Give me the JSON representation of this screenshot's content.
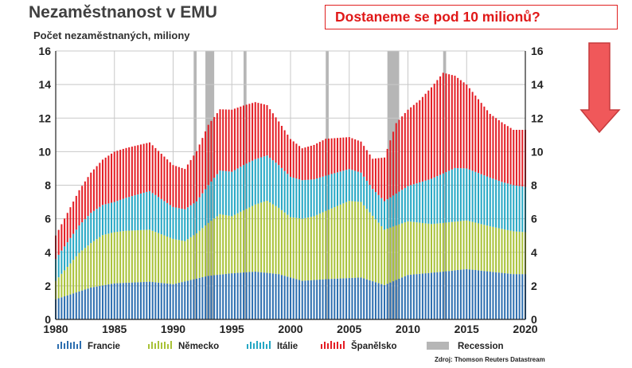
{
  "header": {
    "title": "Nezaměstnanost v EMU",
    "subtitle": "Počet nezaměstnaných, miliony",
    "callout": "Dostaneme se pod 10 milionů?",
    "source": "Zdroj: Thomson Reuters Datastream"
  },
  "icons": {
    "callout_arrow": "down-arrow-icon"
  },
  "colors": {
    "francie": "#2e6fb0",
    "nemecko": "#a9c238",
    "italie": "#25a7c4",
    "spanelsko": "#e41f26",
    "recession": "#b6b6b6",
    "arrow": "#f0585a"
  },
  "chart_data": {
    "type": "bar",
    "stacked": true,
    "x_unit": "year (quarterly)",
    "y_unit": "millions",
    "xlim": [
      1980,
      2020
    ],
    "ylim": [
      0,
      16
    ],
    "xticks": [
      1980,
      1985,
      1990,
      1995,
      2000,
      2005,
      2010,
      2015,
      2020
    ],
    "yticks": [
      0,
      2,
      4,
      6,
      8,
      10,
      12,
      14,
      16
    ],
    "grid": true,
    "legend": "bottom",
    "series": [
      {
        "name": "Francie",
        "key": "francie",
        "points": [
          [
            1980,
            1.2
          ],
          [
            1983,
            1.9
          ],
          [
            1985,
            2.15
          ],
          [
            1988,
            2.25
          ],
          [
            1990,
            2.1
          ],
          [
            1993,
            2.6
          ],
          [
            1995,
            2.75
          ],
          [
            1997,
            2.85
          ],
          [
            1999,
            2.7
          ],
          [
            2001,
            2.3
          ],
          [
            2003,
            2.4
          ],
          [
            2006,
            2.5
          ],
          [
            2008,
            2.05
          ],
          [
            2010,
            2.65
          ],
          [
            2013,
            2.85
          ],
          [
            2015,
            3.0
          ],
          [
            2017,
            2.85
          ],
          [
            2019,
            2.7
          ],
          [
            2020,
            2.7
          ]
        ]
      },
      {
        "name": "Německo",
        "key": "nemecko",
        "points": [
          [
            1980,
            1.1
          ],
          [
            1982,
            2.3
          ],
          [
            1984,
            3.0
          ],
          [
            1986,
            3.1
          ],
          [
            1988,
            3.1
          ],
          [
            1990,
            2.7
          ],
          [
            1991,
            2.4
          ],
          [
            1992,
            2.7
          ],
          [
            1994,
            3.6
          ],
          [
            1995,
            3.4
          ],
          [
            1998,
            4.3
          ],
          [
            2000,
            3.6
          ],
          [
            2002,
            3.8
          ],
          [
            2005,
            4.6
          ],
          [
            2006,
            4.5
          ],
          [
            2008,
            3.3
          ],
          [
            2010,
            3.2
          ],
          [
            2012,
            2.9
          ],
          [
            2015,
            2.9
          ],
          [
            2017,
            2.7
          ],
          [
            2019,
            2.55
          ],
          [
            2020,
            2.5
          ]
        ]
      },
      {
        "name": "Itálie",
        "key": "italie",
        "points": [
          [
            1980,
            1.3
          ],
          [
            1983,
            1.8
          ],
          [
            1985,
            1.8
          ],
          [
            1988,
            2.3
          ],
          [
            1990,
            1.9
          ],
          [
            1992,
            1.9
          ],
          [
            1994,
            2.6
          ],
          [
            1996,
            2.7
          ],
          [
            1998,
            2.7
          ],
          [
            2000,
            2.4
          ],
          [
            2003,
            2.1
          ],
          [
            2005,
            1.9
          ],
          [
            2007,
            1.6
          ],
          [
            2008,
            1.7
          ],
          [
            2010,
            2.1
          ],
          [
            2012,
            2.7
          ],
          [
            2014,
            3.2
          ],
          [
            2016,
            3.0
          ],
          [
            2018,
            2.8
          ],
          [
            2020,
            2.7
          ]
        ]
      },
      {
        "name": "Španělsko",
        "key": "spanelsko",
        "points": [
          [
            1980,
            1.4
          ],
          [
            1982,
            2.1
          ],
          [
            1985,
            3.0
          ],
          [
            1988,
            2.9
          ],
          [
            1990,
            2.5
          ],
          [
            1991,
            2.4
          ],
          [
            1993,
            3.6
          ],
          [
            1995,
            3.7
          ],
          [
            1997,
            3.4
          ],
          [
            1999,
            2.6
          ],
          [
            2001,
            1.9
          ],
          [
            2003,
            2.2
          ],
          [
            2005,
            1.9
          ],
          [
            2007,
            1.8
          ],
          [
            2008,
            2.6
          ],
          [
            2009,
            4.2
          ],
          [
            2011,
            4.9
          ],
          [
            2013,
            6.0
          ],
          [
            2015,
            5.0
          ],
          [
            2017,
            3.8
          ],
          [
            2019,
            3.3
          ],
          [
            2020,
            3.4
          ]
        ]
      }
    ],
    "recession": {
      "name": "Recession",
      "periods": [
        [
          1991.75,
          1992.0
        ],
        [
          1992.75,
          1993.5
        ],
        [
          1996.0,
          1996.25
        ],
        [
          2003.0,
          2003.25
        ],
        [
          2008.25,
          2009.25
        ],
        [
          2013.0,
          2013.25
        ]
      ]
    },
    "legend_entries": [
      "Francie",
      "Německo",
      "Itálie",
      "Španělsko",
      "Recession"
    ]
  }
}
